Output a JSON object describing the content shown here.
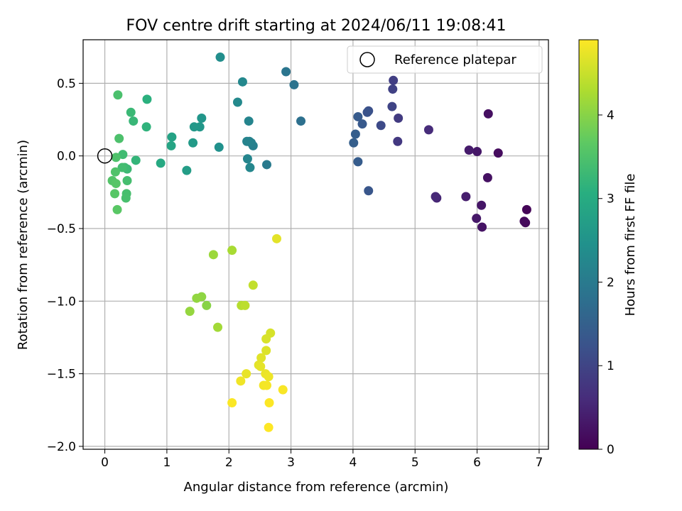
{
  "chart_data": {
    "type": "scatter",
    "title": "FOV centre drift starting at 2024/06/11 19:08:41",
    "xlabel": "Angular distance from reference (arcmin)",
    "ylabel": "Rotation from reference (arcmin)",
    "xlim": [
      -0.35,
      7.15
    ],
    "ylim": [
      -2.02,
      0.8
    ],
    "xticks": [
      0,
      1,
      2,
      3,
      4,
      5,
      6,
      7
    ],
    "yticks": [
      -2.0,
      -1.5,
      -1.0,
      -0.5,
      0.0,
      0.5
    ],
    "xtick_labels": [
      "0",
      "1",
      "2",
      "3",
      "4",
      "5",
      "6",
      "7"
    ],
    "ytick_labels": [
      "−2.0",
      "−1.5",
      "−1.0",
      "−0.5",
      "0.0",
      "0.5"
    ],
    "grid": true,
    "legend": {
      "placement": "top-right",
      "entries": [
        "Reference platepar"
      ]
    },
    "reference_point": {
      "x": 0.0,
      "y": 0.0
    },
    "colorbar": {
      "label": "Hours from first FF file",
      "colormap": "viridis",
      "range": [
        0,
        4.9
      ],
      "ticks": [
        0,
        1,
        2,
        3,
        4
      ],
      "tick_labels": [
        "0",
        "1",
        "2",
        "3",
        "4"
      ]
    },
    "series": [
      {
        "points": [
          {
            "x": 6.8,
            "y": -0.37,
            "c": 0.05
          },
          {
            "x": 6.78,
            "y": -0.46,
            "c": 0.1
          },
          {
            "x": 6.76,
            "y": -0.45,
            "c": 0.12
          },
          {
            "x": 6.34,
            "y": 0.02,
            "c": 0.15
          },
          {
            "x": 6.18,
            "y": 0.29,
            "c": 0.2
          },
          {
            "x": 6.17,
            "y": -0.15,
            "c": 0.22
          },
          {
            "x": 6.08,
            "y": -0.49,
            "c": 0.25
          },
          {
            "x": 6.07,
            "y": -0.34,
            "c": 0.28
          },
          {
            "x": 6.0,
            "y": 0.03,
            "c": 0.3
          },
          {
            "x": 5.99,
            "y": -0.43,
            "c": 0.32
          },
          {
            "x": 5.87,
            "y": 0.04,
            "c": 0.36
          },
          {
            "x": 5.82,
            "y": -0.28,
            "c": 0.4
          },
          {
            "x": 5.35,
            "y": -0.29,
            "c": 0.5
          },
          {
            "x": 5.33,
            "y": -0.28,
            "c": 0.55
          },
          {
            "x": 5.22,
            "y": 0.18,
            "c": 0.6
          },
          {
            "x": 4.72,
            "y": 0.1,
            "c": 0.8
          },
          {
            "x": 4.73,
            "y": 0.26,
            "c": 0.85
          },
          {
            "x": 4.65,
            "y": 0.52,
            "c": 0.9
          },
          {
            "x": 4.64,
            "y": 0.46,
            "c": 0.95
          },
          {
            "x": 4.63,
            "y": 0.34,
            "c": 1.0
          },
          {
            "x": 4.45,
            "y": 0.21,
            "c": 1.1
          },
          {
            "x": 4.25,
            "y": 0.31,
            "c": 1.2
          },
          {
            "x": 4.23,
            "y": 0.3,
            "c": 1.25
          },
          {
            "x": 4.25,
            "y": -0.24,
            "c": 1.3
          },
          {
            "x": 4.15,
            "y": 0.22,
            "c": 1.35
          },
          {
            "x": 4.08,
            "y": 0.27,
            "c": 1.4
          },
          {
            "x": 4.08,
            "y": -0.04,
            "c": 1.42
          },
          {
            "x": 4.04,
            "y": 0.15,
            "c": 1.45
          },
          {
            "x": 4.01,
            "y": 0.09,
            "c": 1.48
          },
          {
            "x": 3.16,
            "y": 0.24,
            "c": 1.8
          },
          {
            "x": 3.05,
            "y": 0.49,
            "c": 1.85
          },
          {
            "x": 2.92,
            "y": 0.58,
            "c": 1.9
          },
          {
            "x": 2.61,
            "y": -0.06,
            "c": 2.0
          },
          {
            "x": 2.39,
            "y": 0.07,
            "c": 2.1
          },
          {
            "x": 2.36,
            "y": 0.09,
            "c": 2.12
          },
          {
            "x": 2.33,
            "y": 0.1,
            "c": 2.15
          },
          {
            "x": 2.29,
            "y": 0.1,
            "c": 2.18
          },
          {
            "x": 2.32,
            "y": 0.24,
            "c": 2.2
          },
          {
            "x": 2.3,
            "y": -0.02,
            "c": 2.22
          },
          {
            "x": 2.34,
            "y": -0.08,
            "c": 2.25
          },
          {
            "x": 2.22,
            "y": 0.51,
            "c": 2.28
          },
          {
            "x": 2.14,
            "y": 0.37,
            "c": 2.3
          },
          {
            "x": 1.86,
            "y": 0.68,
            "c": 2.4
          },
          {
            "x": 1.84,
            "y": 0.06,
            "c": 2.45
          },
          {
            "x": 1.56,
            "y": 0.26,
            "c": 2.55
          },
          {
            "x": 1.53,
            "y": 0.2,
            "c": 2.58
          },
          {
            "x": 1.44,
            "y": 0.2,
            "c": 2.6
          },
          {
            "x": 1.42,
            "y": 0.09,
            "c": 2.65
          },
          {
            "x": 1.32,
            "y": -0.1,
            "c": 2.7
          },
          {
            "x": 1.08,
            "y": 0.13,
            "c": 2.8
          },
          {
            "x": 1.07,
            "y": 0.07,
            "c": 2.85
          },
          {
            "x": 0.9,
            "y": -0.05,
            "c": 2.95
          },
          {
            "x": 0.68,
            "y": 0.39,
            "c": 3.1
          },
          {
            "x": 0.67,
            "y": 0.2,
            "c": 3.15
          },
          {
            "x": 0.5,
            "y": -0.03,
            "c": 3.2
          },
          {
            "x": 0.46,
            "y": 0.24,
            "c": 3.25
          },
          {
            "x": 0.42,
            "y": 0.3,
            "c": 3.28
          },
          {
            "x": 0.36,
            "y": -0.09,
            "c": 3.3
          },
          {
            "x": 0.32,
            "y": -0.08,
            "c": 3.32
          },
          {
            "x": 0.29,
            "y": 0.01,
            "c": 3.35
          },
          {
            "x": 0.28,
            "y": -0.08,
            "c": 3.38
          },
          {
            "x": 0.36,
            "y": -0.17,
            "c": 3.4
          },
          {
            "x": 0.35,
            "y": -0.26,
            "c": 3.42
          },
          {
            "x": 0.34,
            "y": -0.29,
            "c": 3.44
          },
          {
            "x": 0.21,
            "y": 0.42,
            "c": 3.46
          },
          {
            "x": 0.23,
            "y": 0.12,
            "c": 3.48
          },
          {
            "x": 0.18,
            "y": -0.01,
            "c": 3.5
          },
          {
            "x": 0.17,
            "y": -0.11,
            "c": 3.52
          },
          {
            "x": 0.12,
            "y": -0.17,
            "c": 3.55
          },
          {
            "x": 0.18,
            "y": -0.19,
            "c": 3.58
          },
          {
            "x": 0.16,
            "y": -0.26,
            "c": 3.6
          },
          {
            "x": 0.2,
            "y": -0.37,
            "c": 3.62
          },
          {
            "x": 1.64,
            "y": -1.03,
            "c": 4.0
          },
          {
            "x": 1.56,
            "y": -0.97,
            "c": 4.05
          },
          {
            "x": 1.48,
            "y": -0.98,
            "c": 4.08
          },
          {
            "x": 1.37,
            "y": -1.07,
            "c": 4.1
          },
          {
            "x": 1.75,
            "y": -0.68,
            "c": 4.15
          },
          {
            "x": 1.82,
            "y": -1.18,
            "c": 4.2
          },
          {
            "x": 2.05,
            "y": -0.65,
            "c": 4.25
          },
          {
            "x": 2.2,
            "y": -1.03,
            "c": 4.35
          },
          {
            "x": 2.26,
            "y": -1.03,
            "c": 4.4
          },
          {
            "x": 2.39,
            "y": -0.89,
            "c": 4.45
          },
          {
            "x": 2.77,
            "y": -0.57,
            "c": 4.7
          },
          {
            "x": 2.67,
            "y": -1.22,
            "c": 4.6
          },
          {
            "x": 2.6,
            "y": -1.26,
            "c": 4.62
          },
          {
            "x": 2.6,
            "y": -1.34,
            "c": 4.65
          },
          {
            "x": 2.52,
            "y": -1.39,
            "c": 4.68
          },
          {
            "x": 2.48,
            "y": -1.44,
            "c": 4.7
          },
          {
            "x": 2.51,
            "y": -1.45,
            "c": 4.72
          },
          {
            "x": 2.28,
            "y": -1.5,
            "c": 4.74
          },
          {
            "x": 2.59,
            "y": -1.5,
            "c": 4.76
          },
          {
            "x": 2.64,
            "y": -1.52,
            "c": 4.78
          },
          {
            "x": 2.19,
            "y": -1.55,
            "c": 4.8
          },
          {
            "x": 2.56,
            "y": -1.58,
            "c": 4.82
          },
          {
            "x": 2.61,
            "y": -1.58,
            "c": 4.84
          },
          {
            "x": 2.87,
            "y": -1.61,
            "c": 4.86
          },
          {
            "x": 2.05,
            "y": -1.7,
            "c": 4.88
          },
          {
            "x": 2.65,
            "y": -1.7,
            "c": 4.89
          },
          {
            "x": 2.64,
            "y": -1.87,
            "c": 4.9
          }
        ]
      }
    ]
  }
}
